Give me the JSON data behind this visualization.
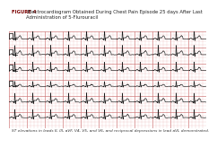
{
  "title_bold": "FIGURE 4",
  "title_normal": " Electrocardiogram Obtained During Chest Pain Episode 25 days After Last Administration of 5-Flurouracil",
  "caption": "ST elevations in leads II, III, aVF, V4, V5, and V6, and reciprocal depressions in lead aVL demonstrated.",
  "bg_color": "#f5c8c8",
  "grid_minor_color": "#e8a8a8",
  "grid_major_color": "#cc7070",
  "ecg_color": "#1a1a1a",
  "figure_label_color": "#7a0000",
  "title_bg": "#ffffff",
  "caption_bg": "#ffffff",
  "n_rows": 6,
  "beats_per_row": 11
}
